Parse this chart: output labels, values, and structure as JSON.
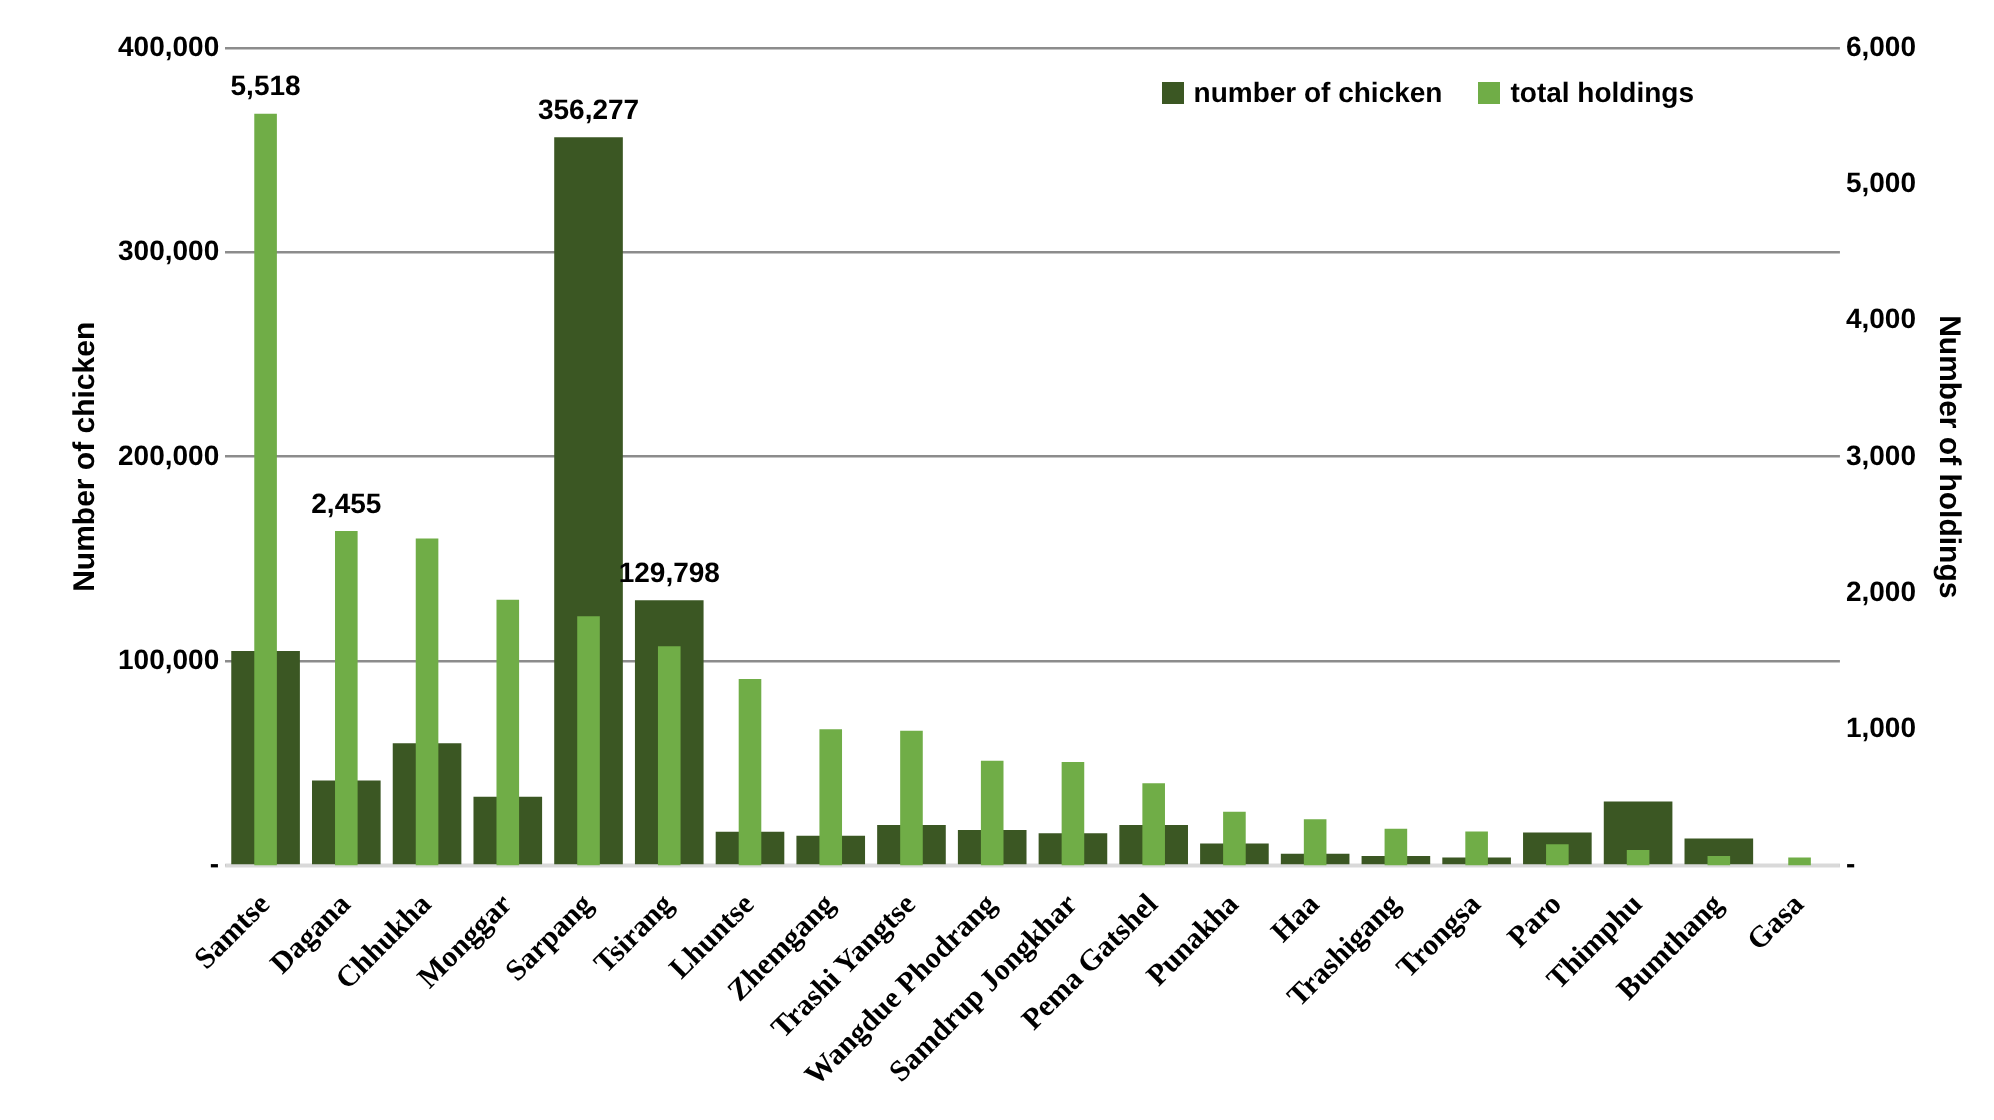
{
  "chart_data": {
    "type": "bar",
    "categories": [
      "Samtse",
      "Dagana",
      "Chhukha",
      "Monggar",
      "Sarpang",
      "Tsirang",
      "Lhuntse",
      "Zhemgang",
      "Trashi Yangtse",
      "Wangdue Phodrang",
      "Samdrup Jongkhar",
      "Pema Gatshel",
      "Punakha",
      "Haa",
      "Trashigang",
      "Trongsa",
      "Paro",
      "Thimphu",
      "Bumthang",
      "Gasa"
    ],
    "series": [
      {
        "name": "number of chicken",
        "color": "#3b5723",
        "axis": "y",
        "values": [
          105000,
          41600,
          59900,
          33700,
          356277,
          129798,
          16500,
          14600,
          19800,
          17400,
          15800,
          19800,
          10800,
          5800,
          4700,
          4000,
          16200,
          31300,
          13300,
          700
        ],
        "value_labels": [
          null,
          null,
          null,
          null,
          "356,277",
          "129,798",
          null,
          null,
          null,
          null,
          null,
          null,
          null,
          null,
          null,
          null,
          null,
          null,
          null,
          null
        ]
      },
      {
        "name": "total holdings",
        "color": "#70ad47",
        "axis": "y2",
        "values": [
          5518,
          2455,
          2400,
          1950,
          1830,
          1610,
          1370,
          1000,
          990,
          770,
          760,
          605,
          395,
          340,
          270,
          250,
          157,
          114,
          70,
          60
        ],
        "value_labels": [
          "5,518",
          "2,455",
          null,
          null,
          null,
          null,
          null,
          null,
          null,
          null,
          null,
          null,
          null,
          null,
          null,
          null,
          null,
          null,
          null,
          null
        ]
      }
    ],
    "ylabel": "Number of chicken",
    "y2label": "Number of holdings",
    "ylim": [
      0,
      400000
    ],
    "yticks": [
      {
        "value": 0,
        "label": "-"
      },
      {
        "value": 100000,
        "label": "100,000"
      },
      {
        "value": 200000,
        "label": "200,000"
      },
      {
        "value": 300000,
        "label": "300,000"
      },
      {
        "value": 400000,
        "label": "400,000"
      }
    ],
    "y2lim": [
      0,
      6000
    ],
    "y2ticks": [
      {
        "value": 0,
        "label": "-"
      },
      {
        "value": 1000,
        "label": "1,000"
      },
      {
        "value": 2000,
        "label": "2,000"
      },
      {
        "value": 3000,
        "label": "3,000"
      },
      {
        "value": 4000,
        "label": "4,000"
      },
      {
        "value": 5000,
        "label": "5,000"
      },
      {
        "value": 6000,
        "label": "6,000"
      }
    ],
    "grid": "y",
    "legend": "top right"
  }
}
